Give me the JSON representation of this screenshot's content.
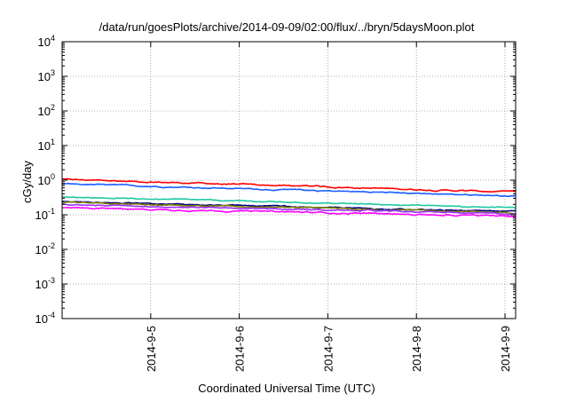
{
  "chart_data": {
    "type": "line",
    "title": "/data/run/goesPlots/archive/2014-09-09/02:00/flux/../bryn/5daysMoon.plot",
    "xlabel": "Coordinated Universal Time (UTC)",
    "ylabel": "cGy/day",
    "y_scale": "log",
    "ylim_exp": [
      -4,
      4
    ],
    "y_tick_exponents": [
      -4,
      -3,
      -2,
      -1,
      0,
      1,
      2,
      3,
      4
    ],
    "y_tick_base": "10",
    "xlim_days": [
      4.0,
      9.12
    ],
    "x_ticks": [
      {
        "day": 5,
        "label": "2014-9-5"
      },
      {
        "day": 6,
        "label": "2014-9-6"
      },
      {
        "day": 7,
        "label": "2014-9-7"
      },
      {
        "day": 8,
        "label": "2014-9-8"
      },
      {
        "day": 9,
        "label": "2014-9-9"
      }
    ],
    "grid": true,
    "series": [
      {
        "color": "#ff0000",
        "start": 1.05,
        "end": 0.45,
        "noise": 0.04
      },
      {
        "color": "#1a5cff",
        "start": 0.78,
        "end": 0.35,
        "noise": 0.035
      },
      {
        "color": "#1ec8a0",
        "start": 0.33,
        "end": 0.16,
        "noise": 0.03
      },
      {
        "color": "#000080",
        "start": 0.24,
        "end": 0.12,
        "noise": 0.035
      },
      {
        "color": "#808000",
        "start": 0.22,
        "end": 0.115,
        "noise": 0.035
      },
      {
        "color": "#9b30ff",
        "start": 0.2,
        "end": 0.105,
        "noise": 0.035
      },
      {
        "color": "#ff00ff",
        "start": 0.16,
        "end": 0.09,
        "noise": 0.04
      }
    ]
  }
}
